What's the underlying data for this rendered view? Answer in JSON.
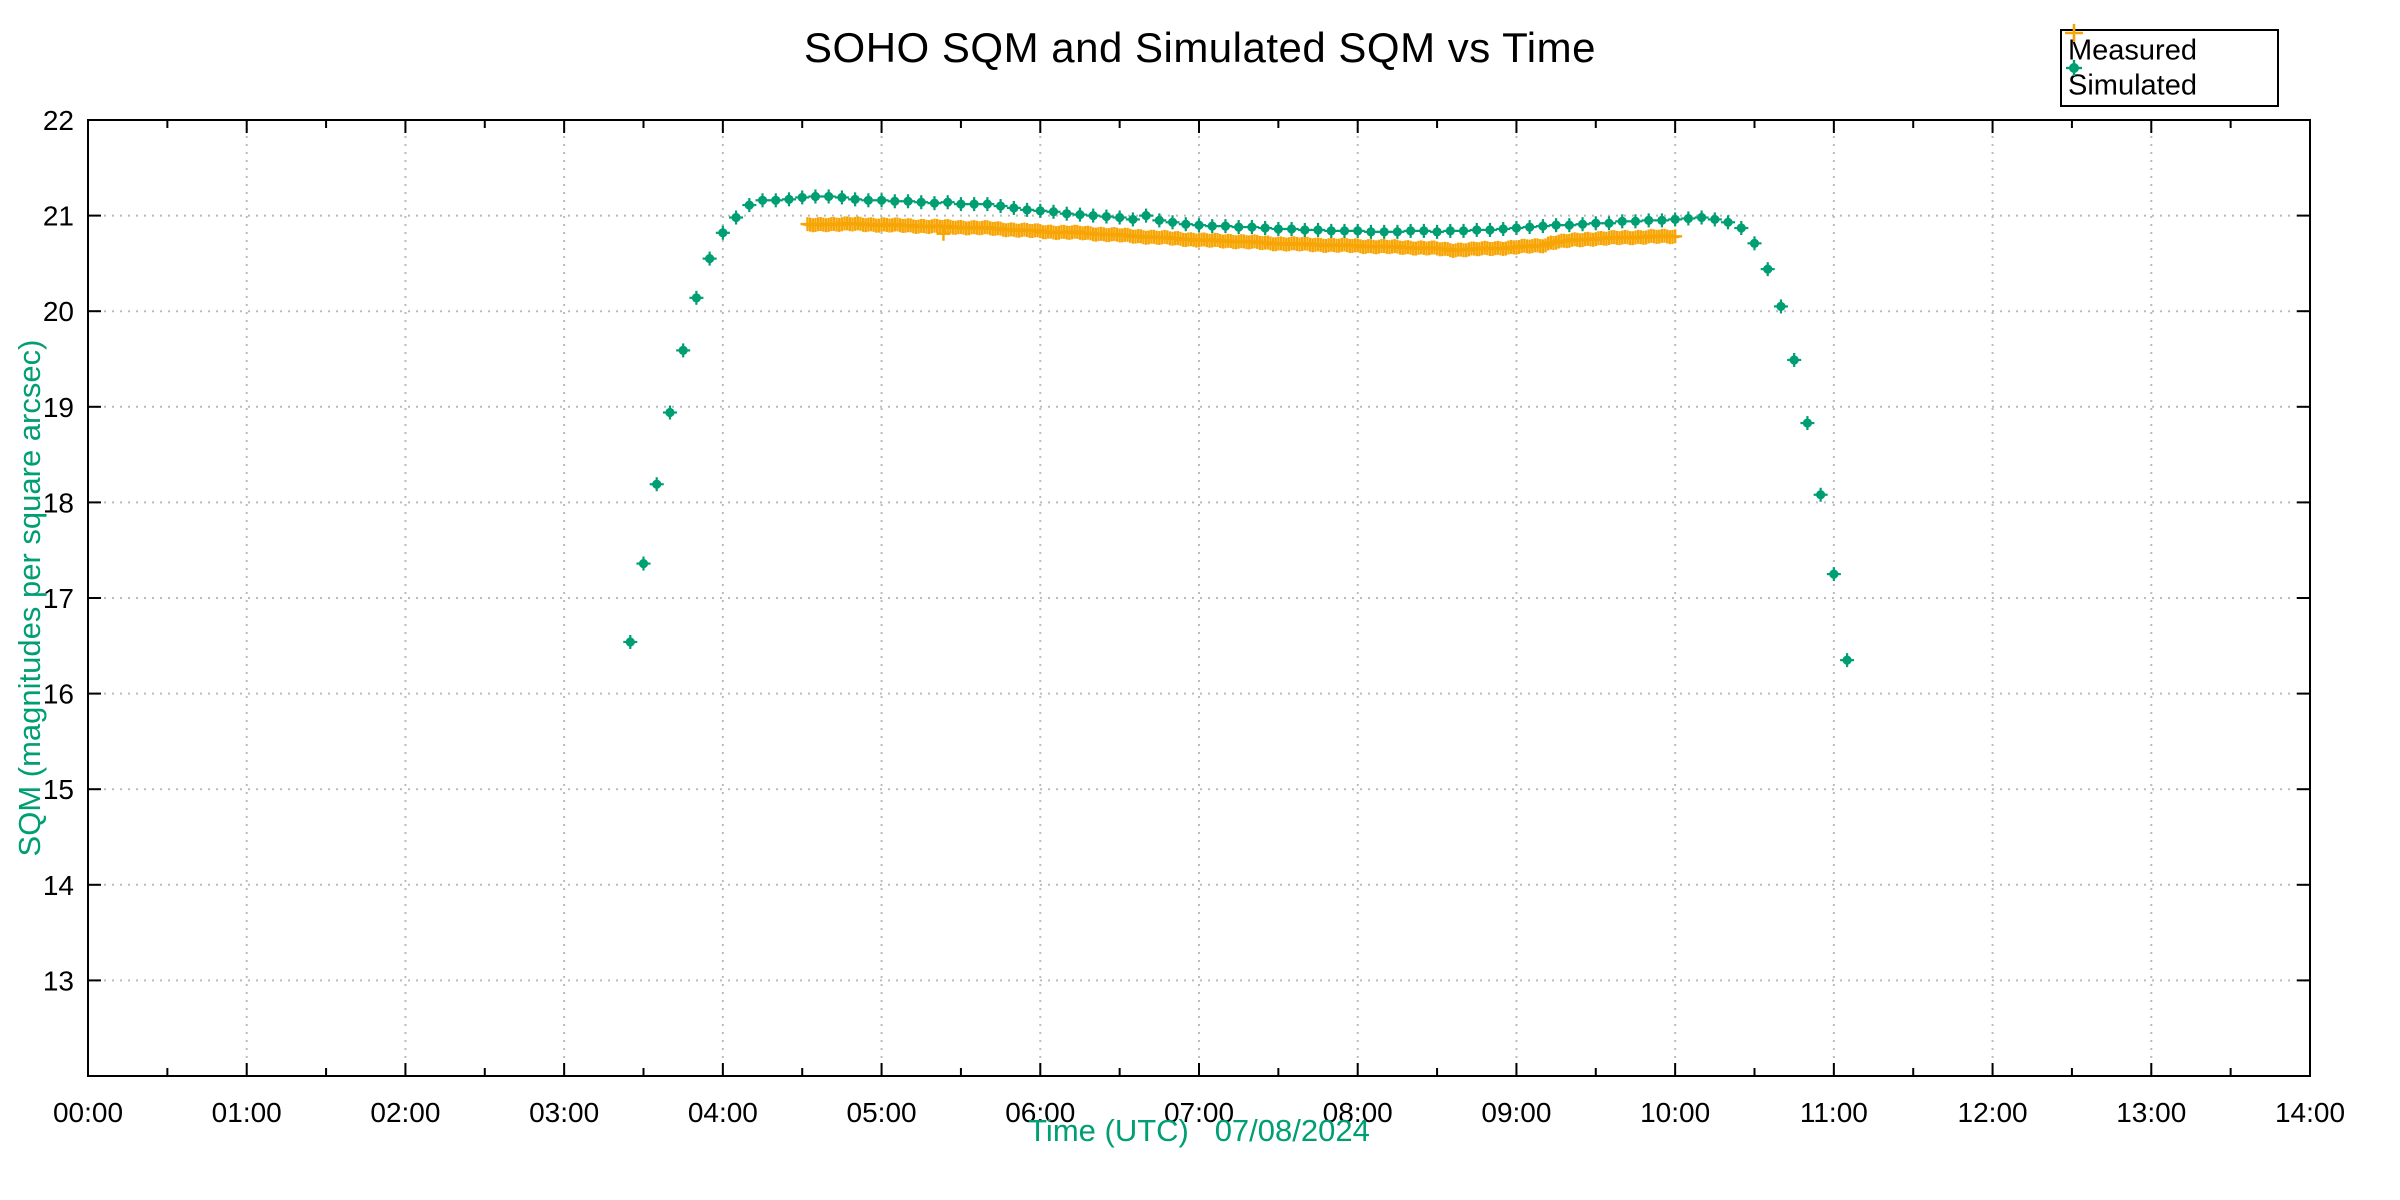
{
  "title": "SOHO SQM and Simulated SQM vs Time",
  "colors": {
    "measured": "#F7A504",
    "simulated": "#009E73",
    "grid": "#bbbbbb",
    "axis": "#000000",
    "accent_label": "#009E73",
    "background": "#ffffff"
  },
  "axes": {
    "x": {
      "label": "Time (UTC)   07/08/2024",
      "min_hours": 0,
      "max_hours": 14,
      "major_tick_interval_hours": 1,
      "minor_tick_interval_hours": 0.5,
      "tick_labels": [
        "00:00",
        "01:00",
        "02:00",
        "03:00",
        "04:00",
        "05:00",
        "06:00",
        "07:00",
        "08:00",
        "09:00",
        "10:00",
        "11:00",
        "12:00",
        "13:00",
        "14:00"
      ]
    },
    "y": {
      "label": "SQM (magnitudes per square arcsec)",
      "min": 12,
      "max": 22,
      "tick_values": [
        13,
        14,
        15,
        16,
        17,
        18,
        19,
        20,
        21,
        22
      ],
      "tick_labels": [
        "13",
        "14",
        "15",
        "16",
        "17",
        "18",
        "19",
        "20",
        "21",
        "22"
      ]
    }
  },
  "legend": {
    "items": [
      {
        "label": "Measured",
        "marker": "plus",
        "color": "#F7A504"
      },
      {
        "label": "Simulated",
        "marker": "dot",
        "color": "#009E73"
      }
    ]
  },
  "chart_data": {
    "type": "scatter",
    "title": "SOHO SQM and Simulated SQM vs Time",
    "xlabel": "Time (UTC)   07/08/2024",
    "ylabel": "SQM (magnitudes per square arcsec)",
    "x_unit": "decimal_hours_utc",
    "xlim": [
      0,
      14
    ],
    "ylim": [
      12,
      22
    ],
    "grid": true,
    "legend_position": "top-right-outside",
    "series": [
      {
        "name": "Simulated",
        "marker": "dot",
        "color": "#009E73",
        "cadence_minutes": 5,
        "points": [
          [
            3.4167,
            16.54
          ],
          [
            3.5,
            17.36
          ],
          [
            3.5833,
            18.19
          ],
          [
            3.6667,
            18.94
          ],
          [
            3.75,
            19.59
          ],
          [
            3.8333,
            20.14
          ],
          [
            3.9167,
            20.55
          ],
          [
            4.0,
            20.82
          ],
          [
            4.0833,
            20.98
          ],
          [
            4.1667,
            21.11
          ],
          [
            4.25,
            21.16
          ],
          [
            4.3333,
            21.16
          ],
          [
            4.4167,
            21.17
          ],
          [
            4.5,
            21.19
          ],
          [
            4.5833,
            21.2
          ],
          [
            4.6667,
            21.2
          ],
          [
            4.75,
            21.19
          ],
          [
            4.8333,
            21.17
          ],
          [
            4.9167,
            21.16
          ],
          [
            5.0,
            21.16
          ],
          [
            5.0833,
            21.15
          ],
          [
            5.1667,
            21.15
          ],
          [
            5.25,
            21.14
          ],
          [
            5.3333,
            21.13
          ],
          [
            5.4167,
            21.14
          ],
          [
            5.5,
            21.12
          ],
          [
            5.5833,
            21.12
          ],
          [
            5.6667,
            21.12
          ],
          [
            5.75,
            21.1
          ],
          [
            5.8333,
            21.08
          ],
          [
            5.9167,
            21.06
          ],
          [
            6.0,
            21.05
          ],
          [
            6.0833,
            21.04
          ],
          [
            6.1667,
            21.02
          ],
          [
            6.25,
            21.01
          ],
          [
            6.3333,
            21.0
          ],
          [
            6.4167,
            20.99
          ],
          [
            6.5,
            20.98
          ],
          [
            6.5833,
            20.96
          ],
          [
            6.6667,
            21.0
          ],
          [
            6.75,
            20.95
          ],
          [
            6.8333,
            20.93
          ],
          [
            6.9167,
            20.91
          ],
          [
            7.0,
            20.9
          ],
          [
            7.0833,
            20.89
          ],
          [
            7.1667,
            20.89
          ],
          [
            7.25,
            20.88
          ],
          [
            7.3333,
            20.88
          ],
          [
            7.4167,
            20.87
          ],
          [
            7.5,
            20.86
          ],
          [
            7.5833,
            20.86
          ],
          [
            7.6667,
            20.85
          ],
          [
            7.75,
            20.85
          ],
          [
            7.8333,
            20.84
          ],
          [
            7.9167,
            20.84
          ],
          [
            8.0,
            20.84
          ],
          [
            8.0833,
            20.83
          ],
          [
            8.1667,
            20.83
          ],
          [
            8.25,
            20.83
          ],
          [
            8.3333,
            20.84
          ],
          [
            8.4167,
            20.84
          ],
          [
            8.5,
            20.83
          ],
          [
            8.5833,
            20.84
          ],
          [
            8.6667,
            20.84
          ],
          [
            8.75,
            20.85
          ],
          [
            8.8333,
            20.85
          ],
          [
            8.9167,
            20.86
          ],
          [
            9.0,
            20.87
          ],
          [
            9.0833,
            20.88
          ],
          [
            9.1667,
            20.89
          ],
          [
            9.25,
            20.9
          ],
          [
            9.3333,
            20.9
          ],
          [
            9.4167,
            20.91
          ],
          [
            9.5,
            20.92
          ],
          [
            9.5833,
            20.92
          ],
          [
            9.6667,
            20.94
          ],
          [
            9.75,
            20.94
          ],
          [
            9.8333,
            20.95
          ],
          [
            9.9167,
            20.95
          ],
          [
            10.0,
            20.96
          ],
          [
            10.0833,
            20.97
          ],
          [
            10.1667,
            20.98
          ],
          [
            10.25,
            20.96
          ],
          [
            10.3333,
            20.93
          ],
          [
            10.4167,
            20.87
          ],
          [
            10.5,
            20.71
          ],
          [
            10.5833,
            20.44
          ],
          [
            10.6667,
            20.05
          ],
          [
            10.75,
            19.49
          ],
          [
            10.8333,
            18.83
          ],
          [
            10.9167,
            18.08
          ],
          [
            11.0,
            17.25
          ],
          [
            11.0833,
            16.35
          ]
        ]
      },
      {
        "name": "Measured",
        "marker": "plus",
        "color": "#F7A504",
        "cadence_minutes": 1,
        "time_span_hours": [
          4.5333,
          10.0
        ],
        "control_points": [
          [
            4.5333,
            20.9
          ],
          [
            4.65,
            20.91
          ],
          [
            4.85,
            20.91
          ],
          [
            5.05,
            20.9
          ],
          [
            5.25,
            20.89
          ],
          [
            5.45,
            20.88
          ],
          [
            5.65,
            20.87
          ],
          [
            5.85,
            20.85
          ],
          [
            6.05,
            20.83
          ],
          [
            6.25,
            20.82
          ],
          [
            6.45,
            20.8
          ],
          [
            6.65,
            20.78
          ],
          [
            6.85,
            20.76
          ],
          [
            7.05,
            20.74
          ],
          [
            7.25,
            20.73
          ],
          [
            7.45,
            20.71
          ],
          [
            7.65,
            20.7
          ],
          [
            7.85,
            20.69
          ],
          [
            8.05,
            20.68
          ],
          [
            8.25,
            20.67
          ],
          [
            8.45,
            20.66
          ],
          [
            8.6,
            20.64
          ],
          [
            8.75,
            20.65
          ],
          [
            8.9,
            20.66
          ],
          [
            9.0,
            20.67
          ],
          [
            9.1,
            20.68
          ],
          [
            9.18,
            20.69
          ],
          [
            9.22,
            20.72
          ],
          [
            9.35,
            20.74
          ],
          [
            9.5,
            20.76
          ],
          [
            9.7,
            20.77
          ],
          [
            9.85,
            20.78
          ],
          [
            10.0,
            20.78
          ]
        ],
        "outliers": [
          [
            5.39,
            20.81
          ]
        ]
      }
    ]
  }
}
